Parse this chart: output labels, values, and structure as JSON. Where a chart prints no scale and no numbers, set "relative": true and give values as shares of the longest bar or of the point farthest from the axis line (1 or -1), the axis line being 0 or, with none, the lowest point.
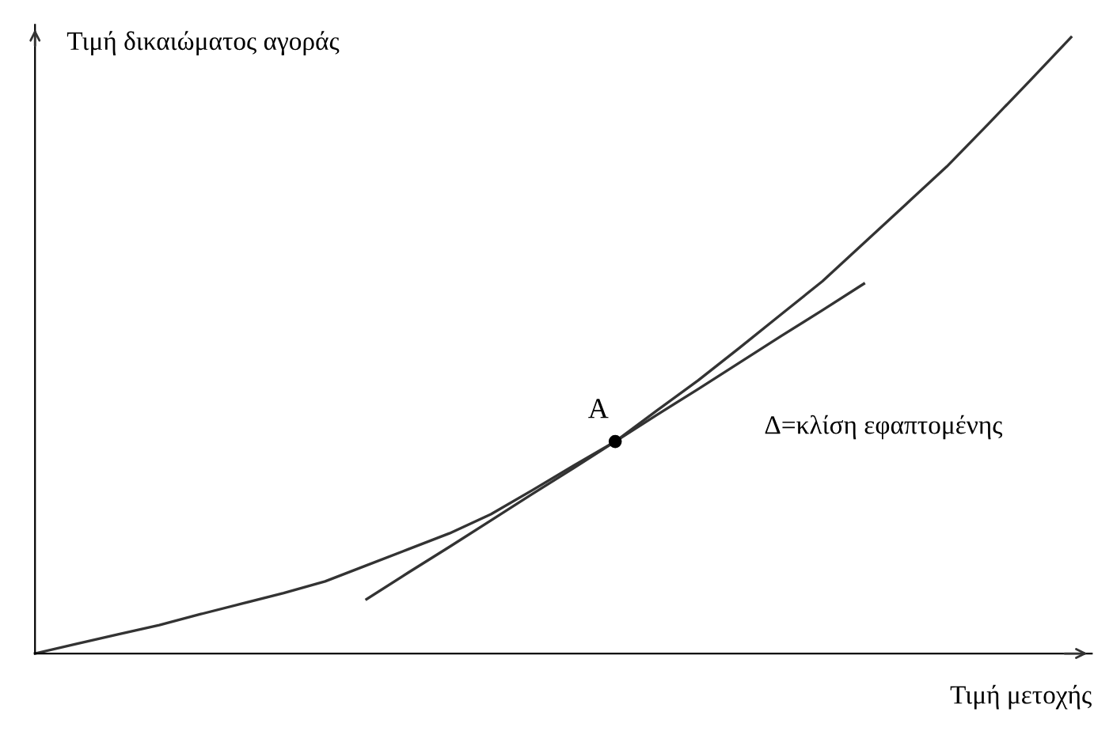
{
  "chart_data": {
    "type": "line",
    "relative": true,
    "xlabel": "Τιμή μετοχής",
    "ylabel": "Τιμή δικαιώματος αγοράς",
    "categories": [
      null,
      null,
      null,
      null,
      null,
      null,
      null,
      null,
      null,
      null,
      null,
      null,
      null,
      null,
      null,
      null,
      null,
      null,
      null,
      null,
      null,
      null,
      null,
      null,
      null,
      null
    ],
    "series": [
      {
        "color": "#333333",
        "values": [
          0,
          0.0155,
          0.031,
          0.046,
          0.064,
          0.081,
          0.098,
          0.117,
          0.143,
          0.169,
          0.195,
          0.226,
          0.265,
          0.305,
          0.344,
          0.394,
          0.443,
          0.496,
          0.55,
          0.604,
          0.666,
          0.728,
          0.79,
          0.859,
          0.929,
          1.0
        ]
      },
      {
        "color": "#333333",
        "values": [
          null,
          null,
          null,
          null,
          null,
          null,
          null,
          null,
          0.088,
          0.131,
          0.173,
          0.216,
          0.259,
          0.301,
          0.344,
          0.387,
          0.429,
          0.472,
          0.515,
          0.557,
          0.6,
          null,
          null,
          null,
          null,
          null
        ]
      },
      {
        "marker": "circle",
        "color": "#000000",
        "values": [
          null,
          null,
          null,
          null,
          null,
          null,
          null,
          null,
          null,
          null,
          null,
          null,
          null,
          null,
          0.344,
          null,
          null,
          null,
          null,
          null,
          null,
          null,
          null,
          null,
          null,
          null
        ]
      }
    ],
    "annotations": [
      "A",
      "Δ=κλίση εφαπτομένης"
    ]
  }
}
